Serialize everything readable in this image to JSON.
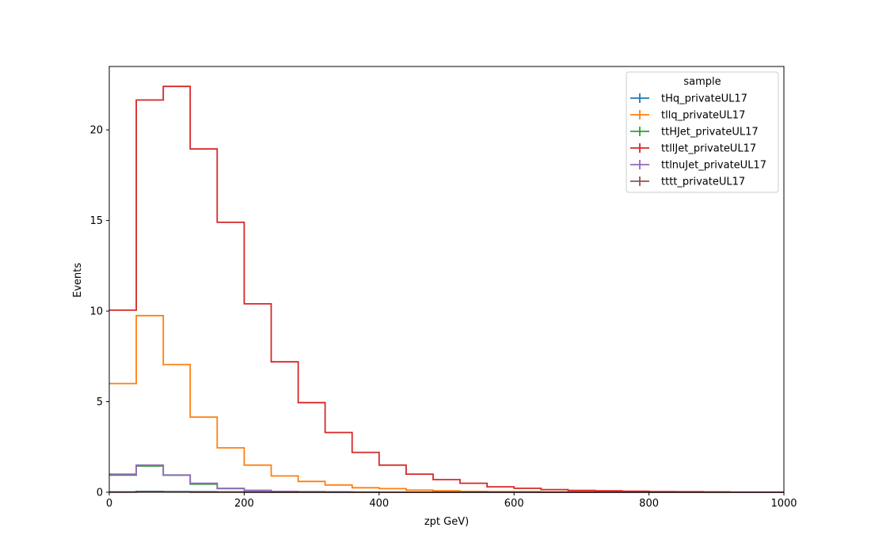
{
  "chart_data": {
    "type": "histogram",
    "xlabel": "zpt GeV)",
    "ylabel": "Events",
    "xlim": [
      0,
      1000
    ],
    "ylim": [
      0,
      23.5
    ],
    "x_ticks": [
      0,
      200,
      400,
      600,
      800,
      1000
    ],
    "y_ticks": [
      0,
      5,
      10,
      15,
      20
    ],
    "grid": false,
    "legend": {
      "title": "sample",
      "placement": "top-right"
    },
    "bin_edges": [
      0,
      40,
      80,
      120,
      160,
      200,
      240,
      280,
      320,
      360,
      400,
      440,
      480,
      520,
      560,
      600,
      640,
      680,
      720,
      760,
      800,
      840,
      880,
      920,
      960,
      1000
    ],
    "series": [
      {
        "name": "tHq_privateUL17",
        "color": "#1f77b4",
        "values": [
          0.02,
          0.05,
          0.04,
          0.03,
          0.02,
          0.01,
          0.01,
          0.01,
          0.0,
          0.0,
          0.0,
          0.0,
          0.0,
          0.0,
          0.0,
          0.0,
          0.0,
          0.0,
          0.0,
          0.0,
          0.0,
          0.0,
          0.0,
          0.0,
          0.0
        ]
      },
      {
        "name": "tllq_privateUL17",
        "color": "#ff7f0e",
        "values": [
          6.0,
          9.75,
          7.05,
          4.15,
          2.45,
          1.5,
          0.9,
          0.6,
          0.4,
          0.25,
          0.2,
          0.12,
          0.08,
          0.05,
          0.04,
          0.03,
          0.02,
          0.02,
          0.01,
          0.01,
          0.01,
          0.0,
          0.0,
          0.0,
          0.0
        ]
      },
      {
        "name": "ttHJet_privateUL17",
        "color": "#2ca02c",
        "values": [
          0.95,
          1.45,
          0.95,
          0.45,
          0.2,
          0.1,
          0.05,
          0.03,
          0.02,
          0.01,
          0.0,
          0.0,
          0.0,
          0.0,
          0.0,
          0.0,
          0.0,
          0.0,
          0.0,
          0.0,
          0.0,
          0.0,
          0.0,
          0.0,
          0.0
        ]
      },
      {
        "name": "ttllJet_privateUL17",
        "color": "#d62728",
        "values": [
          10.05,
          21.65,
          22.4,
          18.95,
          14.9,
          10.4,
          7.2,
          4.95,
          3.3,
          2.2,
          1.5,
          1.0,
          0.7,
          0.5,
          0.3,
          0.22,
          0.15,
          0.1,
          0.08,
          0.06,
          0.04,
          0.03,
          0.02,
          0.01,
          0.01
        ]
      },
      {
        "name": "ttlnuJet_privateUL17",
        "color": "#9467bd",
        "values": [
          1.0,
          1.5,
          0.95,
          0.5,
          0.22,
          0.1,
          0.05,
          0.03,
          0.02,
          0.01,
          0.0,
          0.0,
          0.0,
          0.0,
          0.0,
          0.0,
          0.0,
          0.0,
          0.0,
          0.0,
          0.0,
          0.0,
          0.0,
          0.0,
          0.0
        ]
      },
      {
        "name": "tttt_privateUL17",
        "color": "#8c564b",
        "values": [
          0.01,
          0.02,
          0.02,
          0.01,
          0.01,
          0.01,
          0.0,
          0.0,
          0.0,
          0.0,
          0.0,
          0.0,
          0.0,
          0.0,
          0.0,
          0.0,
          0.0,
          0.0,
          0.0,
          0.0,
          0.0,
          0.0,
          0.0,
          0.0,
          0.0
        ]
      }
    ]
  }
}
